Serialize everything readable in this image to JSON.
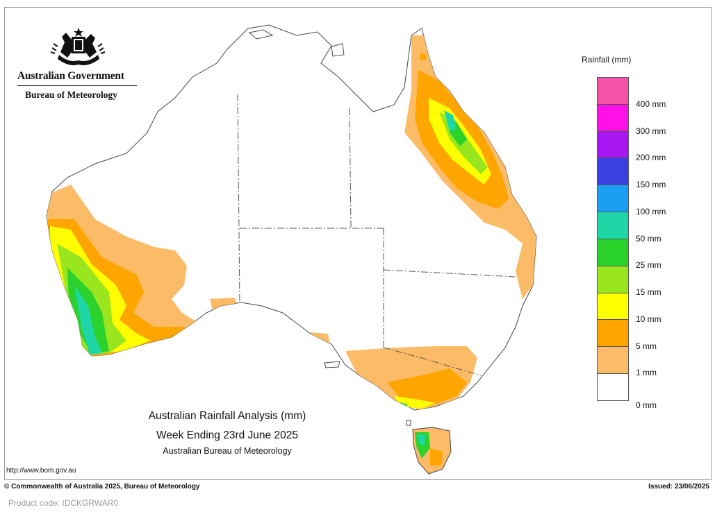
{
  "header": {
    "government": "Australian Government",
    "bureau": "Bureau of Meteorology"
  },
  "legend": {
    "title": "Rainfall (mm)",
    "bands": [
      {
        "label": "",
        "color": "#f452a8"
      },
      {
        "label": "400 mm",
        "color": "#ff10e6"
      },
      {
        "label": "300 mm",
        "color": "#a817f2"
      },
      {
        "label": "200 mm",
        "color": "#3b40e0"
      },
      {
        "label": "150 mm",
        "color": "#1a9ef2"
      },
      {
        "label": "100 mm",
        "color": "#1ed6a6"
      },
      {
        "label": "50 mm",
        "color": "#2cd22c"
      },
      {
        "label": "25 mm",
        "color": "#9ae61e"
      },
      {
        "label": "15 mm",
        "color": "#ffff00"
      },
      {
        "label": "10 mm",
        "color": "#ffa500"
      },
      {
        "label": "5 mm",
        "color": "#fcbb66"
      },
      {
        "label": "1 mm",
        "color": "#ffffff"
      }
    ],
    "bottom_label": "0 mm"
  },
  "map": {
    "title_line1": "Australian Rainfall Analysis (mm)",
    "title_line2": "Week Ending 23rd June 2025",
    "title_line3": "Australian Bureau of Meteorology",
    "url": "http://www.bom.gov.au"
  },
  "footer": {
    "copyright": "© Commonwealth of Australia 2025, Bureau of Meteorology",
    "issued": "Issued: 23/06/2025",
    "product_code": "Product code: IDCKGRWAR0"
  }
}
